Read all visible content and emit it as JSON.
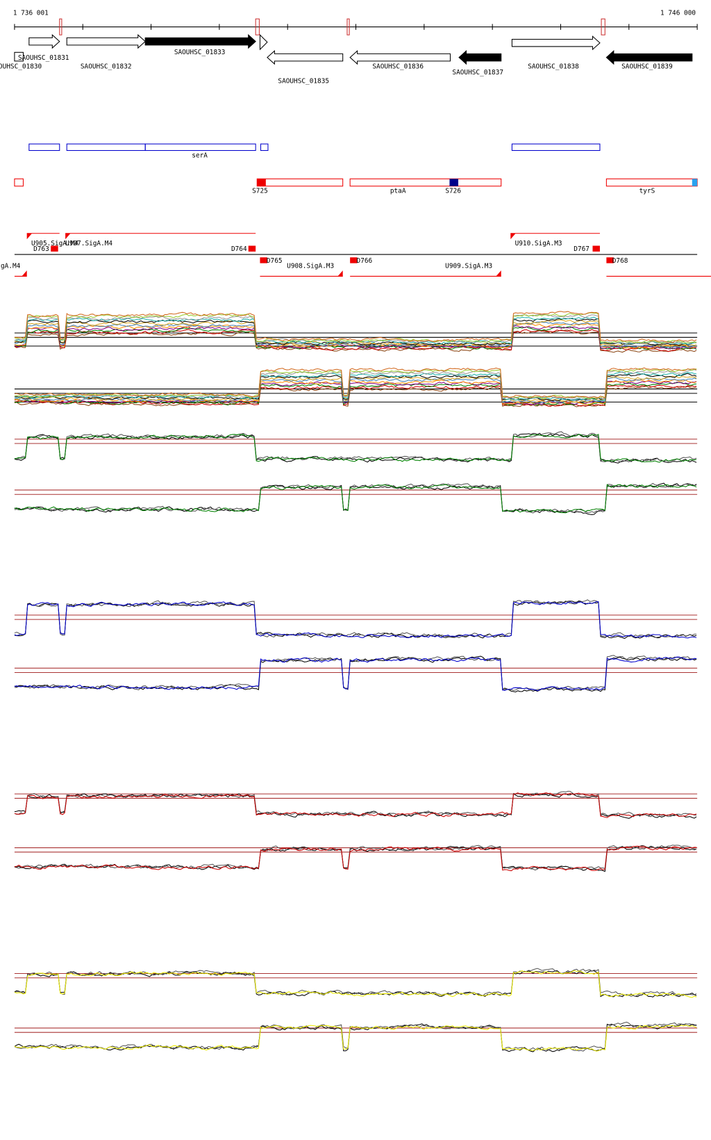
{
  "ruler": {
    "start": "1 736 001",
    "end": "1 746 000"
  },
  "genes": [
    "OUHSC_01830",
    "SAOUHSC_01831",
    "SAOUHSC_01832",
    "SAOUHSC_01833",
    "SAOUHSC_01835",
    "SAOUHSC_01836",
    "SAOUHSC_01837",
    "SAOUHSC_01838",
    "SAOUHSC_01839"
  ],
  "operons": [
    "serA"
  ],
  "segments": [
    "S725",
    "ptaA",
    "S726",
    "tyrS"
  ],
  "promoters": [
    "U905.SigA.M4",
    "D763",
    "U907.SigA.M4",
    "D764",
    "gA.M4",
    "D765",
    "U908.SigA.M3",
    "D766",
    "U909.SigA.M3",
    "U910.SigA.M3",
    "D767",
    "D768"
  ]
}
